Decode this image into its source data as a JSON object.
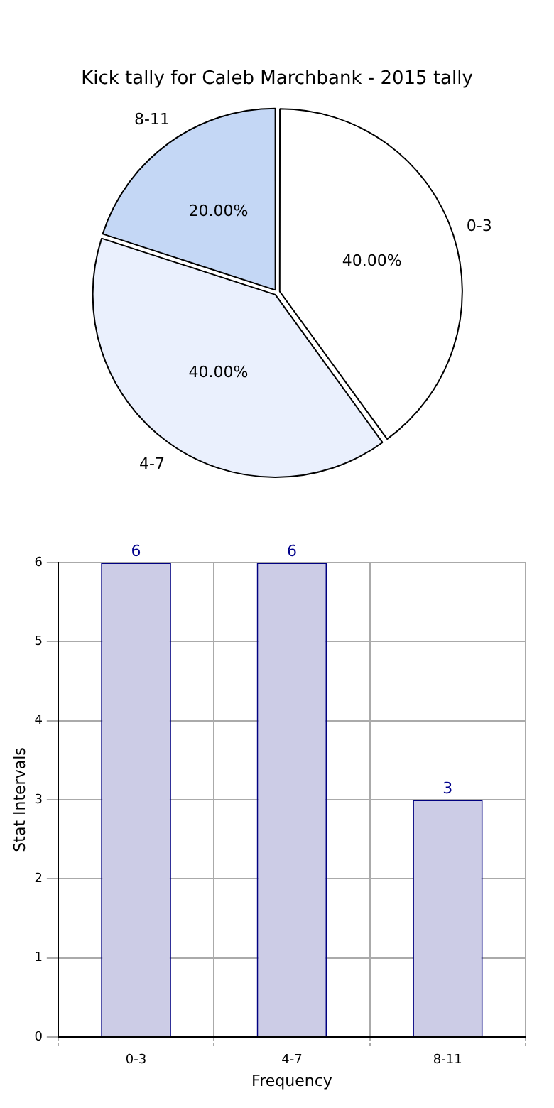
{
  "chart_data": [
    {
      "type": "pie",
      "title": "Kick tally for Caleb Marchbank - 2015 tally",
      "categories": [
        "0-3",
        "4-7",
        "8-11"
      ],
      "values": [
        40,
        40,
        20
      ],
      "colors": [
        "#ffffff",
        "#eaf0fd",
        "#c4d7f5"
      ],
      "value_labels": [
        "40.00%",
        "40.00%",
        "20.00%"
      ],
      "legend": false
    },
    {
      "type": "bar",
      "categories": [
        "0-3",
        "4-7",
        "8-11"
      ],
      "values": [
        6,
        6,
        3
      ],
      "color": "#cccce6",
      "xlabel": "Frequency",
      "ylabel": "Stat Intervals",
      "ylim": [
        0,
        6
      ],
      "yticks": [
        0,
        1,
        2,
        3,
        4,
        5,
        6
      ],
      "grid": true,
      "data_labels": true,
      "legend": false
    }
  ]
}
